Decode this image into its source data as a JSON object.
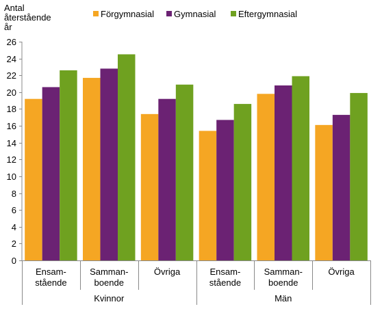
{
  "chart_data": {
    "type": "bar",
    "ylabel_lines": [
      "Antal",
      "återstående",
      "år"
    ],
    "ylim": [
      0,
      26
    ],
    "yticks": [
      0,
      2,
      4,
      6,
      8,
      10,
      12,
      14,
      16,
      18,
      20,
      22,
      24,
      26
    ],
    "grid": false,
    "legend_position": "top",
    "groups": [
      {
        "label": "Kvinnor",
        "categories": [
          [
            "Ensam-",
            "stående"
          ],
          [
            "Samman-",
            "boende"
          ],
          [
            "Övriga"
          ]
        ]
      },
      {
        "label": "Män",
        "categories": [
          [
            "Ensam-",
            "stående"
          ],
          [
            "Samman-",
            "boende"
          ],
          [
            "Övriga"
          ]
        ]
      }
    ],
    "series": [
      {
        "name": "Förgymnasial",
        "color": "#F5A623",
        "values": [
          19.2,
          21.7,
          17.4,
          15.4,
          19.8,
          16.1
        ]
      },
      {
        "name": "Gymnasial",
        "color": "#6B2273",
        "values": [
          20.6,
          22.8,
          19.2,
          16.7,
          20.8,
          17.3
        ]
      },
      {
        "name": "Eftergymnasial",
        "color": "#6FA120",
        "values": [
          22.6,
          24.5,
          20.9,
          18.6,
          21.9,
          19.9
        ]
      }
    ]
  }
}
